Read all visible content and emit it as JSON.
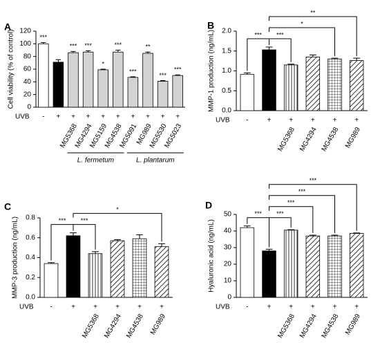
{
  "chart_data": [
    {
      "type": "bar",
      "panel": "A",
      "y_label": "Cell viability (% of control)",
      "treatment_label": "UVB",
      "treatment": [
        "-",
        "+",
        "+",
        "+",
        "+",
        "+",
        "+",
        "+",
        "+",
        "+"
      ],
      "categories": [
        null,
        null,
        "MG5368",
        "MG4294",
        "MG5159",
        "MG4538",
        "MG5091",
        "MG989",
        "MG5530",
        "MG5023"
      ],
      "series": [
        {
          "values": [
            100,
            71,
            86,
            87,
            59,
            87,
            47,
            85,
            41,
            50
          ],
          "errors": [
            2,
            4,
            2,
            2,
            1,
            3,
            1,
            2,
            1,
            1
          ],
          "fills": [
            "#ffffff",
            "#000000",
            "#d3d3d3",
            "#d3d3d3",
            "#d3d3d3",
            "#d3d3d3",
            "#d3d3d3",
            "#d3d3d3",
            "#d3d3d3",
            "#d3d3d3"
          ]
        }
      ],
      "significance": [
        "***",
        null,
        "***",
        "***",
        "*",
        "***",
        "***",
        "**",
        "***",
        "***"
      ],
      "groups": [
        {
          "label": "L. fermetum",
          "from": 2,
          "to": 5
        },
        {
          "label": "L. plantarum",
          "from": 6,
          "to": 9
        }
      ],
      "ylim": [
        0,
        120
      ],
      "yticks": [
        0,
        20,
        40,
        60,
        80,
        100,
        120
      ]
    },
    {
      "type": "bar",
      "panel": "B",
      "y_label": "MMP-1 production (ng/mL)",
      "treatment_label": "UVB",
      "treatment": [
        "-",
        "+",
        "+",
        "+",
        "+",
        "+"
      ],
      "categories": [
        null,
        null,
        "MG5368",
        "MG4294",
        "MG4538",
        "MG989"
      ],
      "series": [
        {
          "values": [
            0.91,
            1.53,
            1.15,
            1.35,
            1.3,
            1.26
          ],
          "errors": [
            0.04,
            0.07,
            0.02,
            0.05,
            0.02,
            0.06
          ],
          "fills": [
            "#ffffff",
            "#000000",
            "vertical",
            "diagonal",
            "grid",
            "diagonal"
          ]
        }
      ],
      "brackets": [
        {
          "from": 0,
          "to": 1,
          "label": "***"
        },
        {
          "from": 1,
          "to": 2,
          "label": "***"
        },
        {
          "from": 1,
          "to": 4,
          "label": "*"
        },
        {
          "from": 1,
          "to": 5,
          "label": "**"
        }
      ],
      "ylim": [
        0,
        2
      ],
      "yticks": [
        {
          "value": 0,
          "label": "0.0"
        },
        0.5,
        {
          "value": 1,
          "label": "1.0"
        },
        1.5,
        {
          "value": 2,
          "label": "2.0"
        }
      ]
    },
    {
      "type": "bar",
      "panel": "C",
      "y_label": "MMP-3 production (ng/mL)",
      "treatment_label": "UVB",
      "treatment": [
        "-",
        "+",
        "+",
        "+",
        "+",
        "+"
      ],
      "categories": [
        null,
        null,
        "MG5368",
        "MG4294",
        "MG4538",
        "MG989"
      ],
      "series": [
        {
          "values": [
            0.34,
            0.62,
            0.44,
            0.57,
            0.59,
            0.51
          ],
          "errors": [
            0.01,
            0.03,
            0.02,
            0.01,
            0.04,
            0.03
          ],
          "fills": [
            "#ffffff",
            "#000000",
            "vertical",
            "diagonal",
            "grid",
            "diagonal"
          ]
        }
      ],
      "brackets": [
        {
          "from": 0,
          "to": 1,
          "label": "***"
        },
        {
          "from": 1,
          "to": 2,
          "label": "***"
        },
        {
          "from": 1,
          "to": 5,
          "label": "*"
        }
      ],
      "ylim": [
        0,
        0.8
      ],
      "yticks": [
        {
          "value": 0,
          "label": "0.0"
        },
        0.2,
        0.4,
        0.6,
        0.8
      ]
    },
    {
      "type": "bar",
      "panel": "D",
      "y_label": "Hyaluronic acid (ng/mL)",
      "treatment_label": "UVB",
      "treatment": [
        "-",
        "+",
        "+",
        "+",
        "+",
        "+"
      ],
      "categories": [
        null,
        null,
        "MG5368",
        "MG4294",
        "MG4538",
        "MG989"
      ],
      "series": [
        {
          "values": [
            42,
            28,
            40.5,
            37,
            37,
            38.5
          ],
          "errors": [
            1,
            1,
            0.3,
            0.5,
            0.5,
            0.3
          ],
          "fills": [
            "#ffffff",
            "#000000",
            "vertical",
            "diagonal",
            "grid",
            "diagonal"
          ]
        }
      ],
      "brackets": [
        {
          "from": 0,
          "to": 1,
          "label": "***"
        },
        {
          "from": 1,
          "to": 2,
          "label": "***"
        },
        {
          "from": 1,
          "to": 3,
          "label": "***"
        },
        {
          "from": 1,
          "to": 4,
          "label": "***"
        },
        {
          "from": 1,
          "to": 5,
          "label": "***"
        }
      ],
      "ylim": [
        0,
        50
      ],
      "yticks": [
        0,
        10,
        20,
        30,
        40,
        50
      ]
    }
  ]
}
